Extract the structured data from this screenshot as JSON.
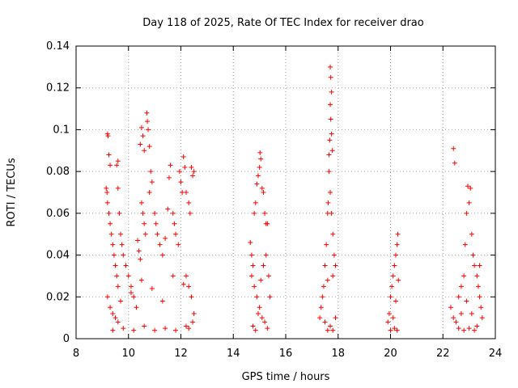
{
  "chart_data": {
    "type": "scatter",
    "title": "Day 118 of 2025, Rate Of TEC Index for receiver drao",
    "xlabel": "GPS time / hours",
    "ylabel": "ROTI / TECUs",
    "xlim": [
      8,
      24
    ],
    "ylim": [
      0,
      0.14
    ],
    "xticks": [
      8,
      10,
      12,
      14,
      16,
      18,
      20,
      22,
      24
    ],
    "yticks": [
      0,
      0.02,
      0.04,
      0.06,
      0.08,
      0.1,
      0.12,
      0.14
    ],
    "xtick_labels": [
      "8",
      "10",
      "12",
      "14",
      "16",
      "18",
      "20",
      "22",
      "24"
    ],
    "ytick_labels": [
      "0",
      "0.02",
      "0.04",
      "0.06",
      "0.08",
      "0.1",
      "0.12",
      "0.14"
    ],
    "grid": true,
    "marker": "+",
    "color": "#ff0000",
    "series": [
      {
        "name": "ROTI",
        "points": [
          [
            9.15,
            0.072
          ],
          [
            9.18,
            0.07
          ],
          [
            9.2,
            0.098
          ],
          [
            9.22,
            0.097
          ],
          [
            9.25,
            0.088
          ],
          [
            9.3,
            0.083
          ],
          [
            9.2,
            0.065
          ],
          [
            9.25,
            0.06
          ],
          [
            9.3,
            0.055
          ],
          [
            9.35,
            0.05
          ],
          [
            9.4,
            0.045
          ],
          [
            9.45,
            0.04
          ],
          [
            9.5,
            0.035
          ],
          [
            9.55,
            0.03
          ],
          [
            9.6,
            0.025
          ],
          [
            9.2,
            0.02
          ],
          [
            9.3,
            0.015
          ],
          [
            9.4,
            0.012
          ],
          [
            9.5,
            0.01
          ],
          [
            9.6,
            0.008
          ],
          [
            9.6,
            0.072
          ],
          [
            9.65,
            0.06
          ],
          [
            9.7,
            0.05
          ],
          [
            9.75,
            0.045
          ],
          [
            9.6,
            0.085
          ],
          [
            9.55,
            0.083
          ],
          [
            9.8,
            0.04
          ],
          [
            9.9,
            0.035
          ],
          [
            10.0,
            0.03
          ],
          [
            10.1,
            0.025
          ],
          [
            10.2,
            0.02
          ],
          [
            10.3,
            0.015
          ],
          [
            10.35,
            0.047
          ],
          [
            10.4,
            0.042
          ],
          [
            10.45,
            0.038
          ],
          [
            10.5,
            0.101
          ],
          [
            10.55,
            0.097
          ],
          [
            10.45,
            0.093
          ],
          [
            10.6,
            0.09
          ],
          [
            10.5,
            0.065
          ],
          [
            10.55,
            0.06
          ],
          [
            10.6,
            0.055
          ],
          [
            10.65,
            0.05
          ],
          [
            10.7,
            0.108
          ],
          [
            10.72,
            0.104
          ],
          [
            10.75,
            0.1
          ],
          [
            10.8,
            0.092
          ],
          [
            10.85,
            0.08
          ],
          [
            10.9,
            0.075
          ],
          [
            10.8,
            0.07
          ],
          [
            11.0,
            0.06
          ],
          [
            11.05,
            0.055
          ],
          [
            11.1,
            0.05
          ],
          [
            11.2,
            0.045
          ],
          [
            11.3,
            0.04
          ],
          [
            11.4,
            0.048
          ],
          [
            11.5,
            0.062
          ],
          [
            11.55,
            0.077
          ],
          [
            11.6,
            0.083
          ],
          [
            11.7,
            0.06
          ],
          [
            11.75,
            0.055
          ],
          [
            11.8,
            0.05
          ],
          [
            11.9,
            0.045
          ],
          [
            11.95,
            0.08
          ],
          [
            12.0,
            0.075
          ],
          [
            12.05,
            0.07
          ],
          [
            12.1,
            0.087
          ],
          [
            12.15,
            0.082
          ],
          [
            12.2,
            0.07
          ],
          [
            12.3,
            0.065
          ],
          [
            12.35,
            0.06
          ],
          [
            12.4,
            0.082
          ],
          [
            12.45,
            0.078
          ],
          [
            12.5,
            0.08
          ],
          [
            12.2,
            0.03
          ],
          [
            12.3,
            0.025
          ],
          [
            12.4,
            0.02
          ],
          [
            12.5,
            0.012
          ],
          [
            12.45,
            0.008
          ],
          [
            12.3,
            0.005
          ],
          [
            9.4,
            0.004
          ],
          [
            9.8,
            0.005
          ],
          [
            10.2,
            0.004
          ],
          [
            10.6,
            0.006
          ],
          [
            11.0,
            0.004
          ],
          [
            11.4,
            0.005
          ],
          [
            11.8,
            0.004
          ],
          [
            12.2,
            0.006
          ],
          [
            9.7,
            0.018
          ],
          [
            10.1,
            0.022
          ],
          [
            10.5,
            0.028
          ],
          [
            10.9,
            0.024
          ],
          [
            11.3,
            0.018
          ],
          [
            11.7,
            0.03
          ],
          [
            12.1,
            0.026
          ],
          [
            14.65,
            0.046
          ],
          [
            14.7,
            0.04
          ],
          [
            14.75,
            0.035
          ],
          [
            14.8,
            0.06
          ],
          [
            14.85,
            0.065
          ],
          [
            14.9,
            0.074
          ],
          [
            14.95,
            0.078
          ],
          [
            15.0,
            0.082
          ],
          [
            15.02,
            0.089
          ],
          [
            15.05,
            0.086
          ],
          [
            15.1,
            0.072
          ],
          [
            15.15,
            0.07
          ],
          [
            15.2,
            0.06
          ],
          [
            15.25,
            0.055
          ],
          [
            15.3,
            0.055
          ],
          [
            14.7,
            0.03
          ],
          [
            14.8,
            0.025
          ],
          [
            14.9,
            0.02
          ],
          [
            15.0,
            0.015
          ],
          [
            15.1,
            0.01
          ],
          [
            15.2,
            0.008
          ],
          [
            15.3,
            0.005
          ],
          [
            14.75,
            0.006
          ],
          [
            14.85,
            0.004
          ],
          [
            14.95,
            0.012
          ],
          [
            15.05,
            0.028
          ],
          [
            15.15,
            0.035
          ],
          [
            15.25,
            0.04
          ],
          [
            15.35,
            0.03
          ],
          [
            15.4,
            0.02
          ],
          [
            17.3,
            0.01
          ],
          [
            17.35,
            0.015
          ],
          [
            17.4,
            0.02
          ],
          [
            17.45,
            0.025
          ],
          [
            17.5,
            0.035
          ],
          [
            17.55,
            0.045
          ],
          [
            17.6,
            0.06
          ],
          [
            17.62,
            0.065
          ],
          [
            17.65,
            0.08
          ],
          [
            17.68,
            0.095
          ],
          [
            17.7,
            0.13
          ],
          [
            17.72,
            0.125
          ],
          [
            17.75,
            0.118
          ],
          [
            17.7,
            0.112
          ],
          [
            17.72,
            0.105
          ],
          [
            17.75,
            0.098
          ],
          [
            17.78,
            0.09
          ],
          [
            17.65,
            0.088
          ],
          [
            17.7,
            0.07
          ],
          [
            17.75,
            0.06
          ],
          [
            17.8,
            0.05
          ],
          [
            17.85,
            0.04
          ],
          [
            17.9,
            0.035
          ],
          [
            17.8,
            0.03
          ],
          [
            17.6,
            0.028
          ],
          [
            17.5,
            0.008
          ],
          [
            17.6,
            0.004
          ],
          [
            17.7,
            0.006
          ],
          [
            17.8,
            0.004
          ],
          [
            17.9,
            0.01
          ],
          [
            19.9,
            0.008
          ],
          [
            19.95,
            0.012
          ],
          [
            20.0,
            0.02
          ],
          [
            20.05,
            0.025
          ],
          [
            20.1,
            0.03
          ],
          [
            20.15,
            0.035
          ],
          [
            20.2,
            0.04
          ],
          [
            20.25,
            0.045
          ],
          [
            20.28,
            0.05
          ],
          [
            20.3,
            0.028
          ],
          [
            20.2,
            0.018
          ],
          [
            20.1,
            0.01
          ],
          [
            20.15,
            0.005
          ],
          [
            20.25,
            0.004
          ],
          [
            20.0,
            0.004
          ],
          [
            22.4,
            0.091
          ],
          [
            22.45,
            0.084
          ],
          [
            22.3,
            0.015
          ],
          [
            22.4,
            0.01
          ],
          [
            22.5,
            0.008
          ],
          [
            22.6,
            0.005
          ],
          [
            22.7,
            0.012
          ],
          [
            22.8,
            0.03
          ],
          [
            22.85,
            0.045
          ],
          [
            22.9,
            0.06
          ],
          [
            22.95,
            0.073
          ],
          [
            23.05,
            0.072
          ],
          [
            23.0,
            0.065
          ],
          [
            23.1,
            0.05
          ],
          [
            23.15,
            0.04
          ],
          [
            23.2,
            0.035
          ],
          [
            23.3,
            0.03
          ],
          [
            23.35,
            0.025
          ],
          [
            23.4,
            0.02
          ],
          [
            23.45,
            0.015
          ],
          [
            23.5,
            0.01
          ],
          [
            23.3,
            0.006
          ],
          [
            23.2,
            0.004
          ],
          [
            23.0,
            0.005
          ],
          [
            22.8,
            0.004
          ],
          [
            22.6,
            0.02
          ],
          [
            22.7,
            0.025
          ],
          [
            22.9,
            0.018
          ],
          [
            23.1,
            0.012
          ],
          [
            23.4,
            0.035
          ]
        ]
      }
    ]
  }
}
